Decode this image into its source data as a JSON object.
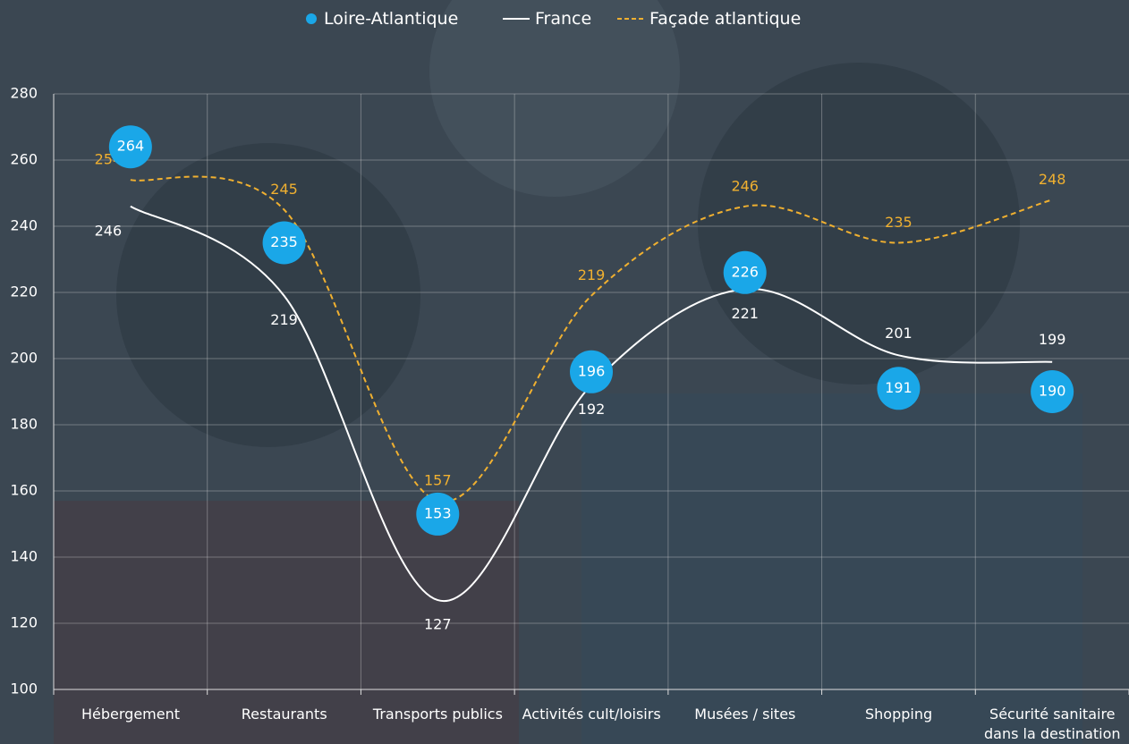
{
  "chart_data": {
    "type": "line",
    "categories": [
      "Hébergement",
      "Restaurants",
      "Transports publics",
      "Activités cult/loisirs",
      "Musées / sites",
      "Shopping",
      "Sécurité sanitaire\ndans la destination"
    ],
    "series": [
      {
        "name": "Loire-Atlantique",
        "type": "scatter",
        "color": "#1aa7e8",
        "values": [
          264,
          235,
          153,
          196,
          226,
          191,
          190
        ]
      },
      {
        "name": "France",
        "type": "line",
        "color": "#ffffff",
        "values": [
          246,
          219,
          127,
          192,
          221,
          201,
          199
        ]
      },
      {
        "name": "Façade atlantique",
        "type": "line",
        "dashed": true,
        "color": "#f0b030",
        "values": [
          254,
          245,
          157,
          219,
          246,
          235,
          248
        ]
      }
    ],
    "ylim": [
      100,
      280
    ],
    "yticks": [
      100,
      120,
      140,
      160,
      180,
      200,
      220,
      240,
      260,
      280
    ],
    "grid": true
  }
}
